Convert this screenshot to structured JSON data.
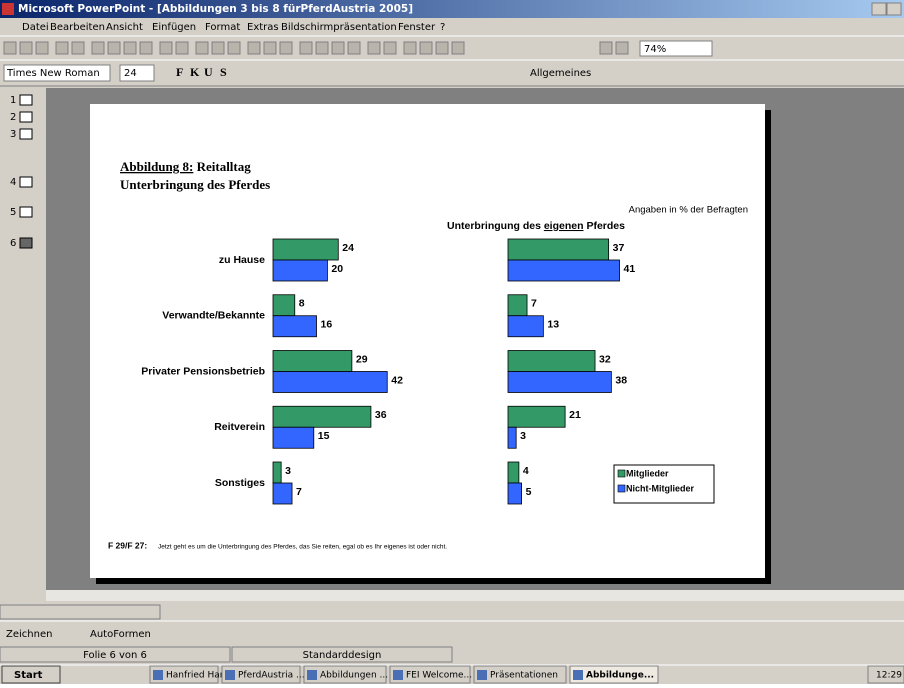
{
  "window": {
    "title": "Microsoft PowerPoint - [Abbildungen 3 bis 8 fürPferdAustria 2005]"
  },
  "menu": [
    "Datei",
    "Bearbeiten",
    "Ansicht",
    "Einfügen",
    "Format",
    "Extras",
    "Bildschirmpräsentation",
    "Fenster",
    "?"
  ],
  "toolbar": {
    "zoom": "74%",
    "font": "Times New Roman",
    "size": "24",
    "style_buttons": [
      "F",
      "K",
      "U",
      "S"
    ],
    "format": "Allgemeines"
  },
  "slides": [
    "1",
    "2",
    "3",
    "4",
    "5",
    "6"
  ],
  "slide": {
    "heading_label": "Abbildung 8:",
    "heading_rest": " Reitalltag",
    "subheading": "Unterbringung des Pferdes",
    "note": "Angaben in % der Befragten",
    "right_title": [
      "Unterbringung des ",
      "eigenen",
      " Pferdes"
    ],
    "footnote_label": "F 29/F 27:",
    "footnote": "Jetzt geht es um die Unterbringung des Pferdes, das Sie reiten, egal ob es Ihr eigenes ist oder nicht.",
    "chart": {
      "type": "bar",
      "categories": [
        "zu Hause",
        "Verwandte/Bekannte",
        "Privater Pensionsbetrieb",
        "Reitverein",
        "Sonstiges"
      ],
      "series": [
        {
          "name": "Mitglieder",
          "color": "#339966",
          "left": [
            24,
            8,
            29,
            36,
            3
          ],
          "right": [
            37,
            7,
            32,
            21,
            4
          ]
        },
        {
          "name": "Nicht-Mitglieder",
          "color": "#3366ff",
          "left": [
            20,
            16,
            42,
            15,
            7
          ],
          "right": [
            41,
            13,
            38,
            3,
            5
          ]
        }
      ]
    }
  },
  "drawing_toolbar": [
    "Zeichnen",
    "AutoFormen"
  ],
  "status": [
    "Folie 6 von 6",
    "Standarddesign"
  ],
  "taskbar": {
    "start": "Start",
    "items": [
      "Hanfried Hari...",
      "PferdAustria ...",
      "Abbildungen ...",
      "FEI Welcome...",
      "Präsentationen",
      "Abbildunge..."
    ],
    "clock": "12:29"
  }
}
